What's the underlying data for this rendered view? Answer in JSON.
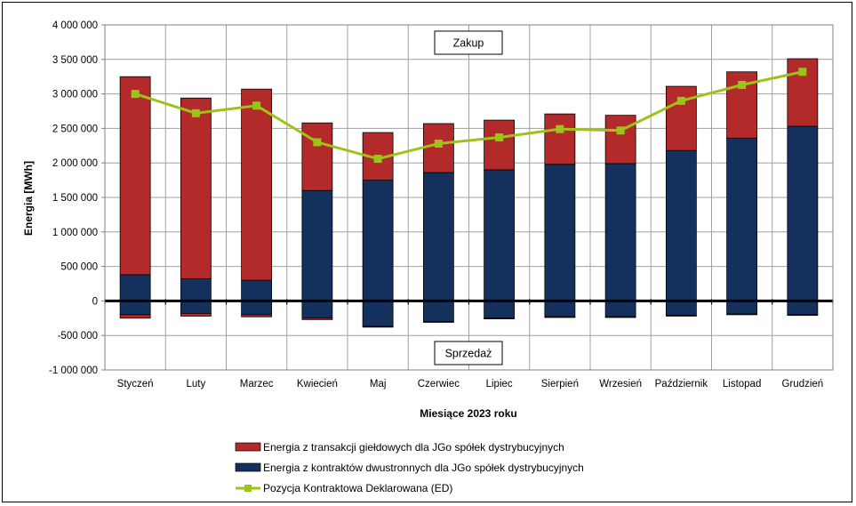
{
  "chart_data": {
    "type": "bar",
    "stacked": true,
    "categories": [
      "Styczeń",
      "Luty",
      "Marzec",
      "Kwiecień",
      "Maj",
      "Czerwiec",
      "Lipiec",
      "Sierpień",
      "Wrzesień",
      "Październik",
      "Listopad",
      "Grudzień"
    ],
    "xlabel": "Miesiące 2023  roku",
    "ylabel": "Energia [MWh]",
    "ylim": [
      -1000000,
      4000000
    ],
    "yticks": [
      4000000,
      3500000,
      3000000,
      2500000,
      2000000,
      1500000,
      1000000,
      500000,
      0,
      -500000,
      -1000000
    ],
    "ytick_labels": [
      "4 000 000",
      "3 500 000",
      "3 000 000",
      "2 500 000",
      "2 000 000",
      "1 500 000",
      "1 000 000",
      "500 000",
      "0",
      "-500 000",
      "-1 000 000"
    ],
    "grid": true,
    "legend_position": "bottom",
    "series": [
      {
        "name": "Energia z kontraktów dwustronnych dla JGo spółek dystrybucyjnych",
        "kind": "bar",
        "color": "#14315e",
        "positive": [
          380000,
          320000,
          300000,
          1600000,
          1750000,
          1860000,
          1900000,
          1980000,
          1990000,
          2180000,
          2360000,
          2530000
        ],
        "negative": [
          -200000,
          -180000,
          -200000,
          -250000,
          -370000,
          -300000,
          -250000,
          -230000,
          -230000,
          -210000,
          -190000,
          -200000
        ]
      },
      {
        "name": "Energia z transakcji giełdowych dla JGo spółek dystrybucyjnych",
        "kind": "bar",
        "color": "#b22a2a",
        "positive": [
          2870000,
          2620000,
          2770000,
          980000,
          690000,
          710000,
          720000,
          730000,
          700000,
          930000,
          960000,
          980000
        ],
        "negative": [
          -50000,
          -40000,
          -30000,
          -20000,
          -10000,
          -10000,
          -10000,
          -10000,
          -10000,
          -10000,
          -10000,
          -10000
        ]
      },
      {
        "name": "Pozycja Kontraktowa Deklarowana (ED)",
        "kind": "line",
        "color": "#9dc31b",
        "values": [
          3000000,
          2720000,
          2830000,
          2300000,
          2060000,
          2280000,
          2370000,
          2490000,
          2470000,
          2900000,
          3130000,
          3320000
        ]
      }
    ],
    "annotations": {
      "top": "Zakup",
      "bottom": "Sprzedaż"
    }
  }
}
